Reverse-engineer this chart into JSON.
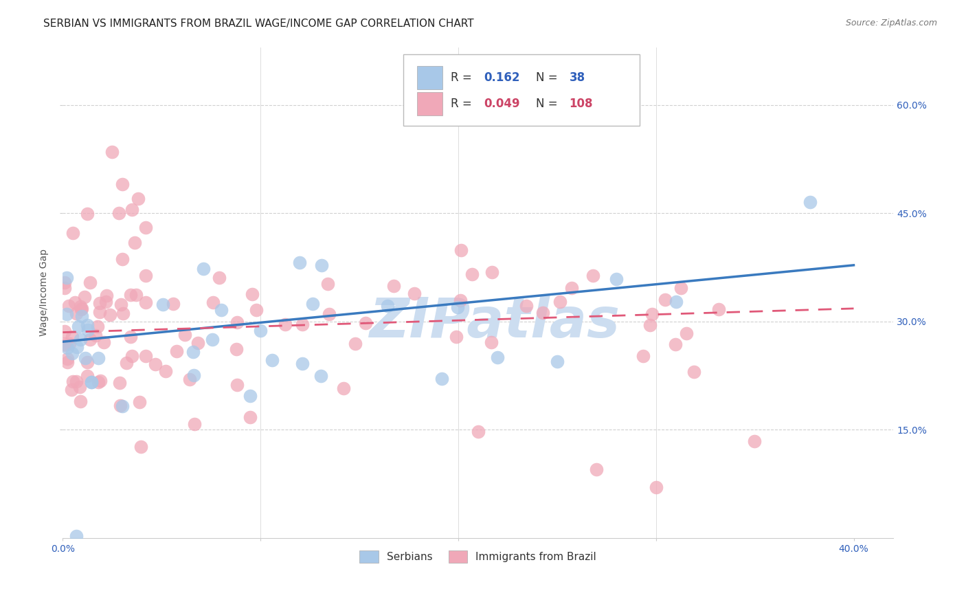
{
  "title": "SERBIAN VS IMMIGRANTS FROM BRAZIL WAGE/INCOME GAP CORRELATION CHART",
  "source": "Source: ZipAtlas.com",
  "ylabel": "Wage/Income Gap",
  "yticks_labels": [
    "15.0%",
    "30.0%",
    "45.0%",
    "60.0%"
  ],
  "ytick_vals": [
    0.15,
    0.3,
    0.45,
    0.6
  ],
  "xtick_vals": [
    0.0,
    0.1,
    0.2,
    0.3,
    0.4
  ],
  "xlim": [
    0.0,
    0.42
  ],
  "ylim": [
    0.0,
    0.68
  ],
  "legend_R_serbian": "0.162",
  "legend_N_serbian": "38",
  "legend_R_brazil": "0.049",
  "legend_N_brazil": "108",
  "background_color": "#ffffff",
  "grid_color": "#d0d0d0",
  "serbian_color": "#a8c8e8",
  "brazil_color": "#f0a8b8",
  "serbian_line_color": "#3a7abf",
  "brazil_line_color": "#e05878",
  "axis_tick_color": "#3060bb",
  "watermark": "ZIPatlas",
  "watermark_color": "#ccddf0",
  "title_fontsize": 11,
  "source_fontsize": 9,
  "ylabel_fontsize": 10,
  "legend_fontsize": 12,
  "tick_fontsize": 10,
  "serbian_line_y0": 0.272,
  "serbian_line_y1": 0.378,
  "brazil_line_y0": 0.285,
  "brazil_line_y1": 0.318
}
